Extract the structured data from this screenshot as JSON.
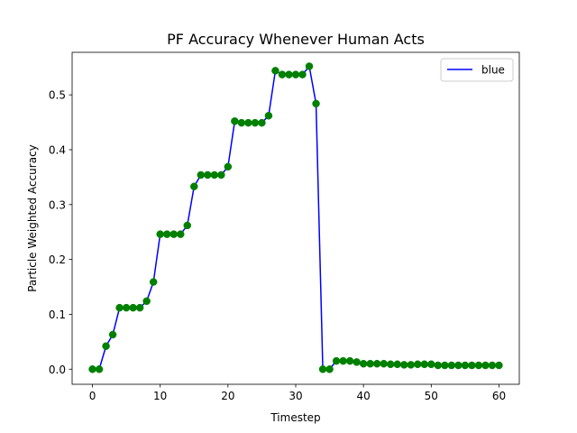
{
  "chart_data": {
    "type": "line",
    "title": "PF Accuracy Whenever Human Acts",
    "xlabel": "Timestep",
    "ylabel": "Particle Weighted Accuracy",
    "xlim": [
      -3,
      63
    ],
    "ylim": [
      -0.0275,
      0.5775
    ],
    "xticks": [
      0,
      10,
      20,
      30,
      40,
      50,
      60
    ],
    "xtick_labels": [
      "0",
      "10",
      "20",
      "30",
      "40",
      "50",
      "60"
    ],
    "yticks": [
      0.0,
      0.1,
      0.2,
      0.3,
      0.4,
      0.5
    ],
    "ytick_labels": [
      "0.0",
      "0.1",
      "0.2",
      "0.3",
      "0.4",
      "0.5"
    ],
    "grid": false,
    "legend": {
      "position": "top-right",
      "entries": [
        "blue"
      ]
    },
    "series": [
      {
        "name": "blue",
        "line_color": "#0000ff",
        "marker_color": "#008000",
        "x": [
          0,
          1,
          2,
          3,
          4,
          5,
          6,
          7,
          8,
          9,
          10,
          11,
          12,
          13,
          14,
          15,
          16,
          17,
          18,
          19,
          20,
          21,
          22,
          23,
          24,
          25,
          26,
          27,
          28,
          29,
          30,
          31,
          32,
          33,
          34,
          35,
          36,
          37,
          38,
          39,
          40,
          41,
          42,
          43,
          44,
          45,
          46,
          47,
          48,
          49,
          50,
          51,
          52,
          53,
          54,
          55,
          56,
          57,
          58,
          59,
          60
        ],
        "y": [
          0.0,
          0.0,
          0.042,
          0.063,
          0.112,
          0.112,
          0.112,
          0.112,
          0.124,
          0.159,
          0.246,
          0.246,
          0.246,
          0.246,
          0.262,
          0.333,
          0.354,
          0.354,
          0.354,
          0.354,
          0.369,
          0.452,
          0.449,
          0.449,
          0.449,
          0.449,
          0.462,
          0.544,
          0.537,
          0.537,
          0.537,
          0.537,
          0.552,
          0.484,
          0.0,
          0.0,
          0.015,
          0.015,
          0.015,
          0.013,
          0.01,
          0.01,
          0.01,
          0.01,
          0.009,
          0.009,
          0.008,
          0.008,
          0.009,
          0.009,
          0.009,
          0.007,
          0.007,
          0.007,
          0.007,
          0.007,
          0.007,
          0.007,
          0.007,
          0.007,
          0.007
        ]
      }
    ]
  }
}
